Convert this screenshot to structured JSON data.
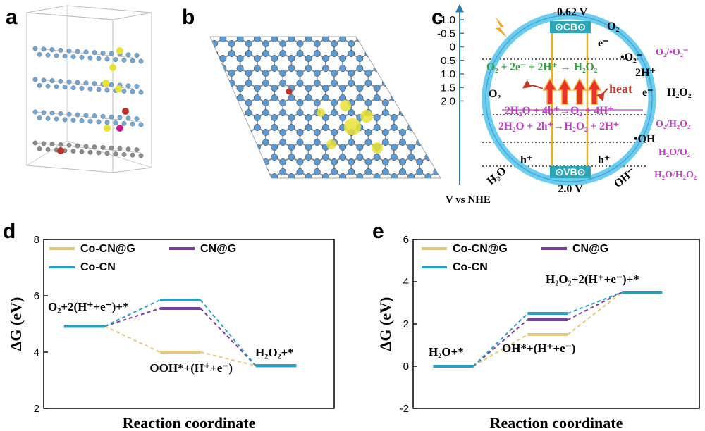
{
  "panels": {
    "a": "a",
    "b": "b",
    "c": "c",
    "d": "d",
    "e": "e"
  },
  "band_diagram": {
    "axis_ticks": [
      "-1.0",
      "-0.5",
      "0",
      "0.5",
      "1.0",
      "1.5",
      "2.0"
    ],
    "axis_label": "V vs NHE",
    "cb_label": "⊙CB⊙",
    "vb_label": "⊙VB⊙",
    "cb_potential": "-0.62 V",
    "vb_potential": "2.0 V",
    "electron": "e⁻",
    "hole": "h⁺",
    "heat": "heat",
    "species": {
      "o2_top": "O₂",
      "o2_left": "O₂",
      "o2_radical": "•O₂⁻",
      "two_h": "2H⁺",
      "h2o2": "H₂O₂",
      "oh_radical": "•OH",
      "h2o": "H₂O",
      "oh_minus": "OH⁻"
    },
    "reactions": {
      "orr": "O₂ + 2e⁻ + 2H⁺ → H₂O₂",
      "woc4": "2H₂O + 4h⁺→O₂ + 4H⁺",
      "woc2": "2H₂O + 2h⁺→H₂O₂ + 2H⁺"
    },
    "redox_couples": [
      "O₂/•O₂⁻",
      "O₂/H₂O₂",
      "H₂O/O₂",
      "H₂O/H₂O₂"
    ],
    "colors": {
      "circle": "#5bc8ee",
      "band": "#2aa6b8",
      "green": "#2e9e3e",
      "magenta": "#c23cc8",
      "dark_red": "#c0392b",
      "gold": "#e5b020"
    }
  },
  "chart_data": [
    {
      "type": "line",
      "panel": "d",
      "xlabel": "Reaction coordinate",
      "ylabel": "ΔG (eV)",
      "ylim": [
        2,
        8
      ],
      "yticks": [
        "2",
        "4",
        "6",
        "8"
      ],
      "grid": false,
      "legend_position": "top-left",
      "steps": [
        "O₂+2(H⁺+e⁻)+*",
        "OOH*+(H⁺+e⁻)",
        "H₂O₂+*"
      ],
      "series": [
        {
          "name": "Co-CN@G",
          "color": "#e6c77e",
          "values": [
            4.92,
            4.0,
            3.52
          ]
        },
        {
          "name": "CN@G",
          "color": "#7a3d9b",
          "values": [
            4.92,
            5.55,
            3.52
          ]
        },
        {
          "name": "Co-CN",
          "color": "#2a9fc2",
          "values": [
            4.92,
            5.85,
            3.52
          ]
        }
      ]
    },
    {
      "type": "line",
      "panel": "e",
      "xlabel": "Reaction coordinate",
      "ylabel": "ΔG (eV)",
      "ylim": [
        -2,
        6
      ],
      "yticks": [
        "-2",
        "0",
        "2",
        "4",
        "6"
      ],
      "grid": false,
      "legend_position": "top-left",
      "steps": [
        "H₂O+*",
        "OH*+(H⁺+e⁻)",
        "H₂O₂+2(H⁺+e⁻)+*"
      ],
      "series": [
        {
          "name": "Co-CN@G",
          "color": "#e6c77e",
          "values": [
            0,
            1.5,
            3.5
          ]
        },
        {
          "name": "CN@G",
          "color": "#7a3d9b",
          "values": [
            0,
            2.2,
            3.5
          ]
        },
        {
          "name": "Co-CN",
          "color": "#2a9fc2",
          "values": [
            0,
            2.5,
            3.5
          ]
        }
      ]
    }
  ]
}
